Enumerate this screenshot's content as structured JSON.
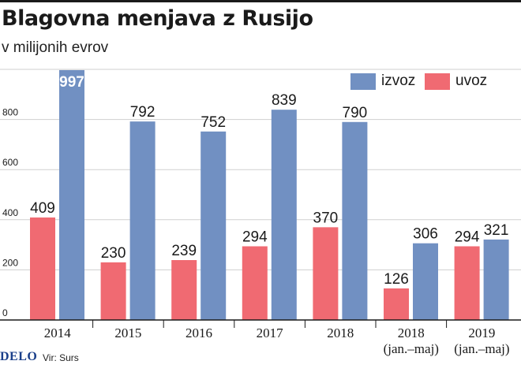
{
  "header": {
    "title": "Blagovna menjava z Rusijo",
    "subtitle": "v milijonih evrov"
  },
  "footer": {
    "brand": "DELO",
    "source": "Vir: Surs"
  },
  "colors": {
    "izvoz": "#7190c2",
    "uvoz": "#f06a72",
    "grid": "#cfcfcf",
    "axis": "#1a1a1a"
  },
  "chart_data": {
    "type": "bar",
    "title": "Blagovna menjava z Rusijo",
    "subtitle": "v milijonih evrov",
    "categories": [
      [
        "2014"
      ],
      [
        "2015"
      ],
      [
        "2016"
      ],
      [
        "2017"
      ],
      [
        "2018"
      ],
      [
        "2018",
        "(jan.–maj)"
      ],
      [
        "2019",
        "(jan.–maj)"
      ]
    ],
    "series": [
      {
        "name": "uvoz",
        "values": [
          409,
          230,
          239,
          294,
          370,
          126,
          294
        ]
      },
      {
        "name": "izvoz",
        "values": [
          997,
          792,
          752,
          839,
          790,
          306,
          321
        ]
      }
    ],
    "legend": [
      "izvoz",
      "uvoz"
    ],
    "legend_position": "top-right",
    "yticks": [
      0,
      200,
      400,
      600,
      800
    ],
    "ylim": [
      0,
      1000
    ],
    "grid": true,
    "data_labels": true
  }
}
